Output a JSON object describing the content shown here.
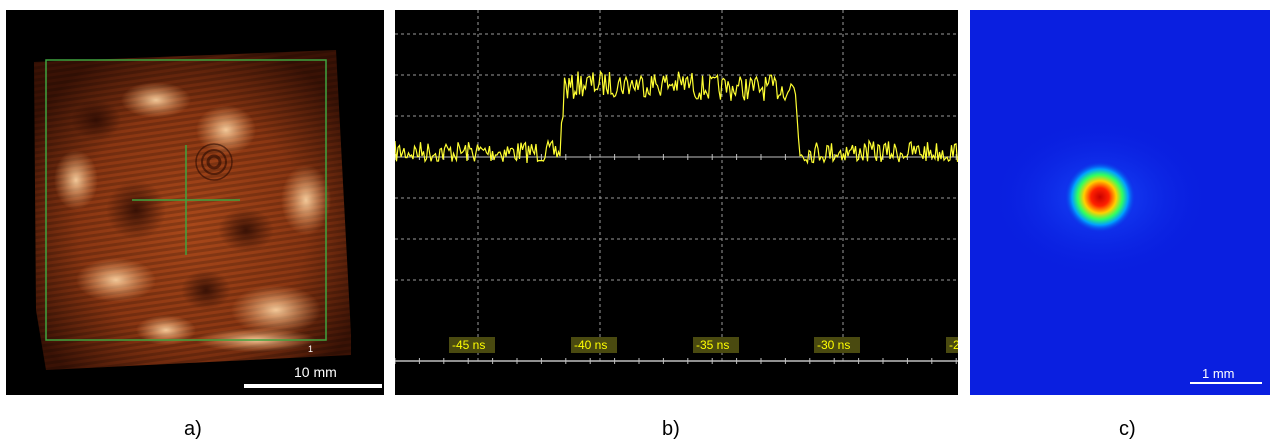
{
  "panels": {
    "a": {
      "caption": "a)",
      "scale_bar_label": "10 mm",
      "marker_label": "1",
      "colors": {
        "background": "#000000",
        "beam": "#c8561e",
        "overlay": "#3fa33f",
        "scale": "#ffffff"
      }
    },
    "b": {
      "caption": "b)",
      "time_labels": [
        "-45 ns",
        "-40 ns",
        "-35 ns",
        "-30 ns",
        "-2"
      ],
      "colors": {
        "background": "#000000",
        "trace": "#ffff33",
        "grid": "#bfbfbf",
        "label_bg": "#4a4a10"
      }
    },
    "c": {
      "caption": "c)",
      "scale_bar_label": "1 mm",
      "colors": {
        "background": "#0a1fe0",
        "peak": "#e00000",
        "scale": "#ffffff"
      }
    }
  }
}
